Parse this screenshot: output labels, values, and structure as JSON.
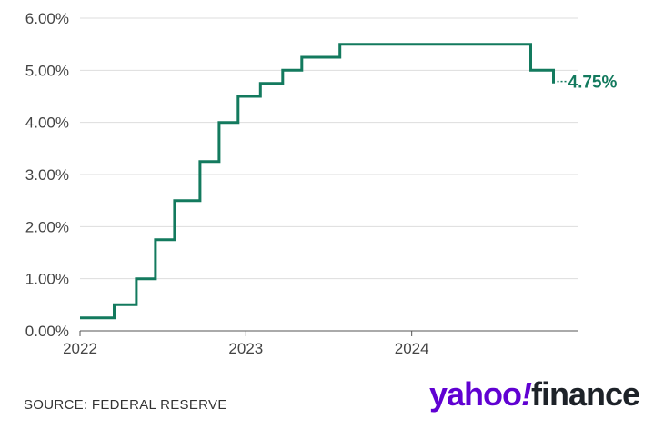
{
  "chart_data": {
    "type": "line",
    "step": true,
    "series": [
      {
        "color": "#137a5e",
        "points": [
          [
            "2022-01-01",
            0.25
          ],
          [
            "2022-03-17",
            0.5
          ],
          [
            "2022-05-05",
            1.0
          ],
          [
            "2022-06-16",
            1.75
          ],
          [
            "2022-07-28",
            2.5
          ],
          [
            "2022-09-22",
            3.25
          ],
          [
            "2022-11-03",
            4.0
          ],
          [
            "2022-12-15",
            4.5
          ],
          [
            "2023-02-02",
            4.75
          ],
          [
            "2023-03-23",
            5.0
          ],
          [
            "2023-05-04",
            5.25
          ],
          [
            "2023-07-27",
            5.5
          ],
          [
            "2024-09-19",
            5.0
          ],
          [
            "2024-11-08",
            4.75
          ]
        ]
      }
    ],
    "end_label": "4.75%",
    "x_ticks": [
      "2022",
      "2023",
      "2024"
    ],
    "y_ticks": [
      "0.00%",
      "1.00%",
      "2.00%",
      "3.00%",
      "4.00%",
      "5.00%",
      "6.00%"
    ],
    "xlim": [
      "2022-01-01",
      "2024-12-31"
    ],
    "ylim": [
      0,
      6
    ],
    "grid": true
  },
  "source": "SOURCE: FEDERAL RESERVE",
  "logo": {
    "yahoo": "yahoo",
    "bang": "!",
    "finance": "finance"
  }
}
